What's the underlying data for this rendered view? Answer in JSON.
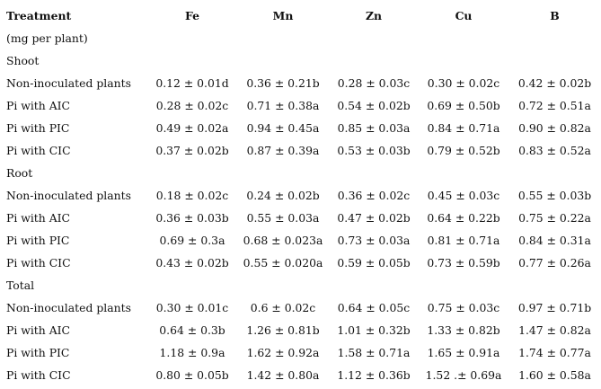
{
  "header": {
    "treatment": "Treatment",
    "columns": [
      "Fe",
      "Mn",
      "Zn",
      "Cu",
      "B"
    ],
    "unit": "(mg per plant)"
  },
  "sections": [
    {
      "title": "Shoot",
      "rows": [
        {
          "label": "Non-inoculated plants",
          "values": [
            "0.12 ± 0.01d",
            "0.36 ± 0.21b",
            "0.28 ± 0.03c",
            "0.30 ± 0.02c",
            "0.42 ± 0.02b"
          ]
        },
        {
          "label": "Pi with AIC",
          "values": [
            "0.28 ± 0.02c",
            "0.71 ± 0.38a",
            "0.54 ± 0.02b",
            "0.69 ± 0.50b",
            "0.72 ± 0.51a"
          ]
        },
        {
          "label": "Pi with PIC",
          "values": [
            "0.49 ± 0.02a",
            "0.94 ± 0.45a",
            "0.85 ± 0.03a",
            "0.84 ± 0.71a",
            "0.90 ± 0.82a"
          ]
        },
        {
          "label": "Pi with CIC",
          "values": [
            "0.37 ± 0.02b",
            "0.87 ± 0.39a",
            "0.53 ± 0.03b",
            "0.79 ± 0.52b",
            "0.83 ± 0.52a"
          ]
        }
      ]
    },
    {
      "title": "Root",
      "rows": [
        {
          "label": "Non-inoculated plants",
          "values": [
            "0.18 ± 0.02c",
            "0.24 ± 0.02b",
            "0.36 ± 0.02c",
            "0.45 ± 0.03c",
            "0.55 ± 0.03b"
          ]
        },
        {
          "label": "Pi with AIC",
          "values": [
            "0.36 ± 0.03b",
            "0.55 ± 0.03a",
            "0.47 ± 0.02b",
            "0.64 ± 0.22b",
            "0.75 ± 0.22a"
          ]
        },
        {
          "label": "Pi with PIC",
          "values": [
            "0.69 ± 0.3a",
            "0.68 ± 0.023a",
            "0.73 ± 0.03a",
            "0.81 ± 0.71a",
            "0.84 ± 0.31a"
          ]
        },
        {
          "label": "Pi with CIC",
          "values": [
            "0.43 ± 0.02b",
            "0.55 ± 0.020a",
            "0.59 ± 0.05b",
            "0.73 ± 0.59b",
            "0.77 ± 0.26a"
          ]
        }
      ]
    },
    {
      "title": "Total",
      "rows": [
        {
          "label": "Non-inoculated plants",
          "values": [
            "0.30 ± 0.01c",
            "0.6 ± 0.02c",
            "0.64 ± 0.05c",
            "0.75 ± 0.03c",
            "0.97 ± 0.71b"
          ]
        },
        {
          "label": "Pi with AIC",
          "values": [
            "0.64 ± 0.3b",
            "1.26 ± 0.81b",
            "1.01 ± 0.32b",
            "1.33 ± 0.82b",
            "1.47 ± 0.82a"
          ]
        },
        {
          "label": "Pi with PIC",
          "values": [
            "1.18 ± 0.9a",
            "1.62 ± 0.92a",
            "1.58 ± 0.71a",
            "1.65 ± 0.91a",
            "1.74 ± 0.77a"
          ]
        },
        {
          "label": "Pi with CIC",
          "values": [
            "0.80 ± 0.05b",
            "1.42 ± 0.80a",
            "1.12 ± 0.36b",
            "1.52 .± 0.69a",
            "1.60 ± 0.58a"
          ]
        }
      ]
    }
  ]
}
